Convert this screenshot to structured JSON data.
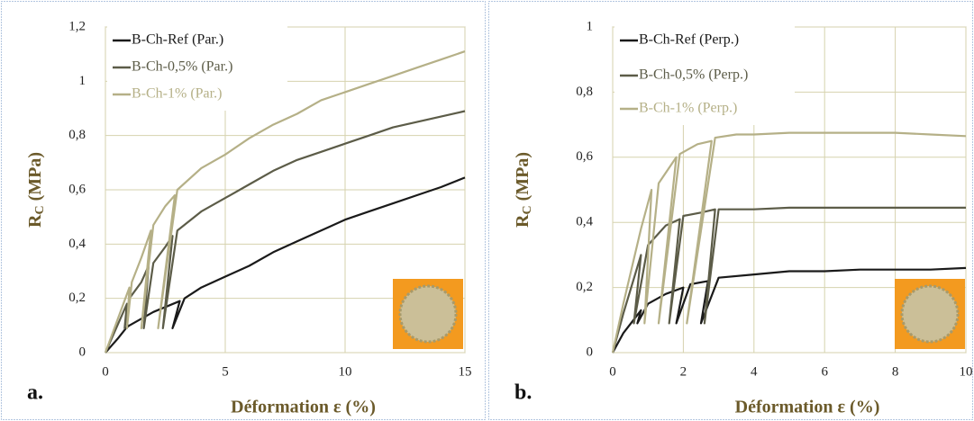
{
  "chart_data": [
    {
      "type": "line",
      "panel_label": "a.",
      "xlabel": "Déformation ε (%)",
      "ylabel": "R",
      "ylabel_sub": "C",
      "ylabel_unit": " (MPa)",
      "xlim": [
        0,
        15
      ],
      "ylim": [
        0,
        1.2
      ],
      "xticks": [
        0,
        5,
        10,
        15
      ],
      "yticks": [
        0,
        {
          "value": 0.2,
          "label": "0,2"
        },
        {
          "value": 0.4,
          "label": "0,4"
        },
        {
          "value": 0.6,
          "label": "0,6"
        },
        {
          "value": 0.8,
          "label": "0,8"
        },
        1,
        {
          "value": 1.2,
          "label": "1,2"
        }
      ],
      "grid": true,
      "legend": "upper left",
      "series": [
        {
          "name": "B-Ch-Ref (Par.)",
          "color": "#1a1a1a",
          "x": [
            0,
            0.5,
            0.95,
            0.85,
            1.0,
            2,
            3.1,
            2.8,
            3.3,
            4,
            5,
            6,
            7,
            8,
            9,
            10,
            11,
            12,
            13,
            14,
            15
          ],
          "values": [
            0,
            0.05,
            0.1,
            0.09,
            0.1,
            0.15,
            0.19,
            0.09,
            0.2,
            0.24,
            0.28,
            0.32,
            0.37,
            0.41,
            0.45,
            0.49,
            0.52,
            0.55,
            0.58,
            0.61,
            0.645
          ]
        },
        {
          "name": "B-Ch-0,5% (Par.)",
          "color": "#5c5c48",
          "x": [
            0,
            0.5,
            0.9,
            0.8,
            1.0,
            1.5,
            1.8,
            1.6,
            2.0,
            2.5,
            2.8,
            2.4,
            3.0,
            4,
            5,
            6,
            7,
            8,
            9,
            10,
            11,
            12,
            13,
            14,
            15
          ],
          "values": [
            0,
            0.1,
            0.18,
            0.09,
            0.2,
            0.26,
            0.32,
            0.09,
            0.33,
            0.39,
            0.43,
            0.09,
            0.45,
            0.52,
            0.57,
            0.62,
            0.67,
            0.71,
            0.74,
            0.77,
            0.8,
            0.83,
            0.85,
            0.87,
            0.89
          ]
        },
        {
          "name": "B-Ch-1% (Par.)",
          "color": "#b5b087",
          "x": [
            0,
            0.5,
            1.0,
            0.9,
            1.1,
            1.5,
            1.9,
            1.5,
            2.0,
            2.5,
            2.9,
            2.2,
            3.0,
            4,
            5,
            6,
            7,
            8,
            9,
            10,
            11,
            12,
            13,
            14,
            15
          ],
          "values": [
            0,
            0.12,
            0.24,
            0.09,
            0.26,
            0.35,
            0.45,
            0.09,
            0.47,
            0.54,
            0.58,
            0.09,
            0.6,
            0.68,
            0.73,
            0.79,
            0.84,
            0.88,
            0.93,
            0.96,
            0.99,
            1.02,
            1.05,
            1.08,
            1.11
          ]
        }
      ]
    },
    {
      "type": "line",
      "panel_label": "b.",
      "xlabel": "Déformation ε (%)",
      "ylabel": "R",
      "ylabel_sub": "C",
      "ylabel_unit": " (MPa)",
      "xlim": [
        0,
        10
      ],
      "ylim": [
        0,
        1
      ],
      "xticks": [
        0,
        2,
        4,
        6,
        8,
        10
      ],
      "yticks": [
        0,
        {
          "value": 0.2,
          "label": "0,2"
        },
        {
          "value": 0.4,
          "label": "0,4"
        },
        {
          "value": 0.6,
          "label": "0,6"
        },
        {
          "value": 0.8,
          "label": "0,8"
        },
        1
      ],
      "grid": true,
      "legend": "upper left",
      "series": [
        {
          "name": "B-Ch-Ref (Perp.)",
          "color": "#1a1a1a",
          "x": [
            0,
            0.3,
            0.8,
            0.7,
            1.0,
            1.5,
            2.0,
            1.8,
            2.2,
            2.7,
            2.5,
            3.0,
            4,
            5,
            6,
            7,
            8,
            9,
            10
          ],
          "values": [
            0,
            0.06,
            0.13,
            0.09,
            0.15,
            0.18,
            0.2,
            0.09,
            0.21,
            0.22,
            0.09,
            0.23,
            0.24,
            0.25,
            0.25,
            0.255,
            0.255,
            0.255,
            0.26
          ]
        },
        {
          "name": "B-Ch-0,5% (Perp.)",
          "color": "#5c5c48",
          "x": [
            0,
            0.3,
            0.8,
            0.6,
            1.0,
            1.5,
            1.9,
            1.6,
            2.0,
            2.5,
            2.9,
            2.6,
            3.0,
            4,
            5,
            6,
            7,
            8,
            9,
            10
          ],
          "values": [
            0,
            0.12,
            0.3,
            0.09,
            0.33,
            0.39,
            0.41,
            0.09,
            0.42,
            0.43,
            0.44,
            0.09,
            0.44,
            0.44,
            0.445,
            0.445,
            0.445,
            0.445,
            0.445,
            0.445
          ]
        },
        {
          "name": "B-Ch-1% (Perp.)",
          "color": "#b5b087",
          "x": [
            0,
            0.3,
            0.8,
            1.1,
            0.9,
            1.3,
            1.8,
            1.3,
            1.9,
            2.4,
            2.8,
            2.1,
            2.9,
            3.5,
            4,
            5,
            6,
            7,
            8,
            9,
            10
          ],
          "values": [
            0,
            0.15,
            0.38,
            0.5,
            0.09,
            0.52,
            0.6,
            0.09,
            0.61,
            0.64,
            0.65,
            0.09,
            0.66,
            0.67,
            0.67,
            0.675,
            0.675,
            0.675,
            0.675,
            0.67,
            0.665
          ]
        }
      ]
    }
  ]
}
